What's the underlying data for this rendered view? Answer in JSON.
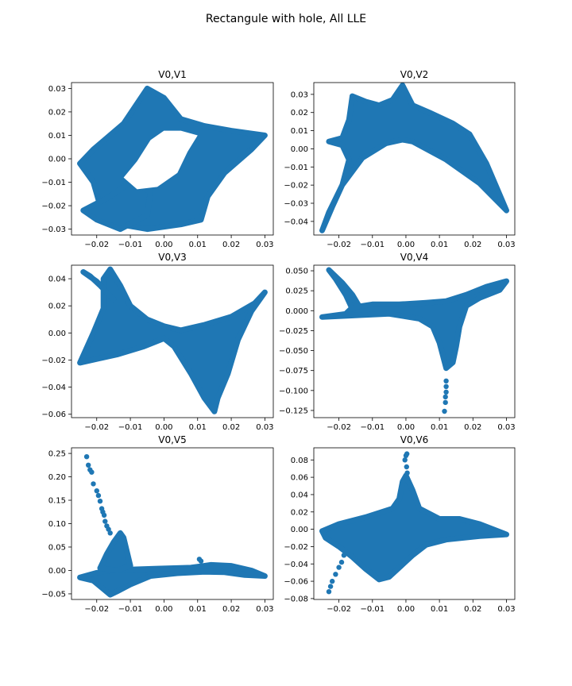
{
  "chart_data": {
    "title": "Rectangule with hole, All LLE",
    "type": "scatter",
    "color": "#1f77b4",
    "panels": [
      {
        "title": "V0,V1",
        "xlim": [
          -0.0275,
          0.0325
        ],
        "ylim": [
          -0.0325,
          0.0325
        ],
        "xticks": [
          -0.02,
          -0.01,
          0.0,
          0.01,
          0.02,
          0.03
        ],
        "xtick_labels": [
          "−0.02",
          "−0.01",
          "0.00",
          "0.01",
          "0.02",
          "0.03"
        ],
        "yticks": [
          -0.03,
          -0.02,
          -0.01,
          0.0,
          0.01,
          0.02,
          0.03
        ],
        "ytick_labels": [
          "−0.03",
          "−0.02",
          "−0.01",
          "0.00",
          "0.01",
          "0.02",
          "0.03"
        ],
        "shapes": [
          [
            [
              -0.025,
              -0.002
            ],
            [
              -0.021,
              0.004
            ],
            [
              -0.012,
              0.015
            ],
            [
              -0.005,
              0.03
            ],
            [
              0.0,
              0.026
            ],
            [
              0.005,
              0.017
            ],
            [
              0.012,
              0.014
            ],
            [
              0.02,
              0.012
            ],
            [
              0.03,
              0.01
            ],
            [
              0.026,
              0.004
            ],
            [
              0.018,
              -0.006
            ],
            [
              0.013,
              -0.016
            ],
            [
              0.011,
              -0.026
            ],
            [
              0.005,
              -0.028
            ],
            [
              -0.005,
              -0.03
            ],
            [
              -0.013,
              -0.028
            ],
            [
              -0.019,
              -0.02
            ],
            [
              -0.021,
              -0.01
            ]
          ],
          [
            [
              -0.024,
              -0.022
            ],
            [
              -0.016,
              -0.016
            ],
            [
              -0.01,
              -0.01
            ],
            [
              -0.004,
              -0.014
            ],
            [
              -0.005,
              -0.024
            ],
            [
              -0.013,
              -0.03
            ],
            [
              -0.02,
              -0.026
            ]
          ]
        ],
        "holes": [
          [
            [
              -0.012,
              -0.008
            ],
            [
              -0.008,
              -0.001
            ],
            [
              -0.004,
              0.008
            ],
            [
              0.0,
              0.012
            ],
            [
              0.005,
              0.012
            ],
            [
              0.01,
              0.01
            ],
            [
              0.007,
              0.003
            ],
            [
              0.004,
              -0.006
            ],
            [
              -0.002,
              -0.012
            ],
            [
              -0.008,
              -0.013
            ]
          ]
        ],
        "points": []
      },
      {
        "title": "V0,V2",
        "xlim": [
          -0.0275,
          0.0325
        ],
        "ylim": [
          -0.0475,
          0.0365
        ],
        "xticks": [
          -0.02,
          -0.01,
          0.0,
          0.01,
          0.02,
          0.03
        ],
        "xtick_labels": [
          "−0.02",
          "−0.01",
          "0.00",
          "0.01",
          "0.02",
          "0.03"
        ],
        "yticks": [
          -0.04,
          -0.03,
          -0.02,
          -0.01,
          0.0,
          0.01,
          0.02,
          0.03
        ],
        "ytick_labels": [
          "−0.04",
          "−0.03",
          "−0.02",
          "−0.01",
          "0.00",
          "0.01",
          "0.02",
          "0.03"
        ],
        "shapes": [
          [
            [
              -0.025,
              -0.045
            ],
            [
              -0.022,
              -0.032
            ],
            [
              -0.019,
              -0.02
            ],
            [
              -0.017,
              -0.006
            ],
            [
              -0.019,
              0.002
            ],
            [
              -0.023,
              0.004
            ],
            [
              -0.019,
              0.006
            ],
            [
              -0.017,
              0.016
            ],
            [
              -0.016,
              0.029
            ],
            [
              -0.012,
              0.026
            ],
            [
              -0.008,
              0.024
            ],
            [
              -0.004,
              0.027
            ],
            [
              -0.001,
              0.035
            ],
            [
              0.002,
              0.024
            ],
            [
              0.007,
              0.02
            ],
            [
              0.014,
              0.014
            ],
            [
              0.019,
              0.008
            ],
            [
              0.024,
              -0.008
            ],
            [
              0.03,
              -0.034
            ],
            [
              0.022,
              -0.019
            ],
            [
              0.012,
              -0.006
            ],
            [
              0.002,
              0.004
            ],
            [
              -0.001,
              0.005
            ],
            [
              -0.006,
              0.003
            ],
            [
              -0.013,
              -0.005
            ],
            [
              -0.019,
              -0.02
            ],
            [
              -0.023,
              -0.035
            ]
          ]
        ],
        "holes": [],
        "points": []
      },
      {
        "title": "V0,V3",
        "xlim": [
          -0.0275,
          0.0325
        ],
        "ylim": [
          -0.0625,
          0.05
        ],
        "xticks": [
          -0.02,
          -0.01,
          0.0,
          0.01,
          0.02,
          0.03
        ],
        "xtick_labels": [
          "−0.02",
          "−0.01",
          "0.00",
          "0.01",
          "0.02",
          "0.03"
        ],
        "yticks": [
          -0.06,
          -0.04,
          -0.02,
          0.0,
          0.02,
          0.04
        ],
        "ytick_labels": [
          "−0.06",
          "−0.04",
          "−0.02",
          "0.00",
          "0.02",
          "0.04"
        ],
        "shapes": [
          [
            [
              -0.025,
              -0.022
            ],
            [
              -0.021,
              0.0
            ],
            [
              -0.018,
              0.018
            ],
            [
              -0.018,
              0.04
            ],
            [
              -0.016,
              0.047
            ],
            [
              -0.013,
              0.035
            ],
            [
              -0.01,
              0.02
            ],
            [
              -0.005,
              0.01
            ],
            [
              0.0,
              0.005
            ],
            [
              0.005,
              0.002
            ],
            [
              0.012,
              0.006
            ],
            [
              0.02,
              0.012
            ],
            [
              0.027,
              0.022
            ],
            [
              0.03,
              0.03
            ],
            [
              0.026,
              0.016
            ],
            [
              0.022,
              -0.005
            ],
            [
              0.019,
              -0.03
            ],
            [
              0.016,
              -0.048
            ],
            [
              0.015,
              -0.058
            ],
            [
              0.012,
              -0.048
            ],
            [
              0.008,
              -0.03
            ],
            [
              0.003,
              -0.01
            ],
            [
              0.0,
              -0.004
            ],
            [
              -0.006,
              -0.01
            ],
            [
              -0.014,
              -0.016
            ]
          ],
          [
            [
              -0.024,
              0.045
            ],
            [
              -0.02,
              0.038
            ],
            [
              -0.017,
              0.03
            ],
            [
              -0.015,
              0.025
            ],
            [
              -0.019,
              0.035
            ],
            [
              -0.022,
              0.042
            ]
          ]
        ],
        "holes": [],
        "points": []
      },
      {
        "title": "V0,V4",
        "xlim": [
          -0.0275,
          0.0325
        ],
        "ylim": [
          -0.134,
          0.057
        ],
        "xticks": [
          -0.02,
          -0.01,
          0.0,
          0.01,
          0.02,
          0.03
        ],
        "xtick_labels": [
          "−0.02",
          "−0.01",
          "0.00",
          "0.01",
          "0.02",
          "0.03"
        ],
        "yticks": [
          -0.125,
          -0.1,
          -0.075,
          -0.05,
          -0.025,
          0.0,
          0.025,
          0.05
        ],
        "ytick_labels": [
          "−0.125",
          "−0.100",
          "−0.075",
          "−0.050",
          "−0.025",
          "0.000",
          "0.025",
          "0.050"
        ],
        "shapes": [
          [
            [
              -0.025,
              -0.008
            ],
            [
              -0.018,
              -0.004
            ],
            [
              -0.016,
              0.004
            ],
            [
              -0.01,
              0.008
            ],
            [
              -0.002,
              0.008
            ],
            [
              0.006,
              0.01
            ],
            [
              0.012,
              0.012
            ],
            [
              0.018,
              0.02
            ],
            [
              0.024,
              0.03
            ],
            [
              0.03,
              0.037
            ],
            [
              0.028,
              0.026
            ],
            [
              0.022,
              0.016
            ],
            [
              0.018,
              0.006
            ],
            [
              0.016,
              -0.02
            ],
            [
              0.015,
              -0.045
            ],
            [
              0.014,
              -0.065
            ],
            [
              0.012,
              -0.072
            ],
            [
              0.01,
              -0.04
            ],
            [
              0.008,
              -0.02
            ],
            [
              0.004,
              -0.01
            ],
            [
              -0.005,
              -0.004
            ],
            [
              -0.015,
              -0.006
            ]
          ],
          [
            [
              -0.023,
              0.051
            ],
            [
              -0.019,
              0.035
            ],
            [
              -0.016,
              0.02
            ],
            [
              -0.014,
              0.006
            ],
            [
              -0.016,
              0.002
            ],
            [
              -0.018,
              0.02
            ],
            [
              -0.021,
              0.04
            ]
          ]
        ],
        "holes": [],
        "points": [
          [
            0.012,
            -0.088
          ],
          [
            0.012,
            -0.095
          ],
          [
            0.012,
            -0.102
          ],
          [
            0.0118,
            -0.108
          ],
          [
            0.0118,
            -0.115
          ],
          [
            0.0115,
            -0.126
          ],
          [
            0.0125,
            -0.07
          ]
        ]
      },
      {
        "title": "V0,V5",
        "xlim": [
          -0.0275,
          0.0325
        ],
        "ylim": [
          -0.062,
          0.262
        ],
        "xticks": [
          -0.02,
          -0.01,
          0.0,
          0.01,
          0.02,
          0.03
        ],
        "xtick_labels": [
          "−0.02",
          "−0.01",
          "0.00",
          "0.01",
          "0.02",
          "0.03"
        ],
        "yticks": [
          -0.05,
          0.0,
          0.05,
          0.1,
          0.15,
          0.2,
          0.25
        ],
        "ytick_labels": [
          "−0.05",
          "0.00",
          "0.05",
          "0.10",
          "0.15",
          "0.20",
          "0.25"
        ],
        "shapes": [
          [
            [
              -0.025,
              -0.015
            ],
            [
              -0.02,
              -0.005
            ],
            [
              -0.016,
              0.0
            ],
            [
              -0.01,
              0.002
            ],
            [
              -0.002,
              0.004
            ],
            [
              0.008,
              0.006
            ],
            [
              0.014,
              0.012
            ],
            [
              0.02,
              0.01
            ],
            [
              0.026,
              0.0
            ],
            [
              0.03,
              -0.012
            ],
            [
              0.024,
              -0.01
            ],
            [
              0.018,
              -0.004
            ],
            [
              0.012,
              -0.003
            ],
            [
              0.004,
              -0.006
            ],
            [
              -0.004,
              -0.012
            ],
            [
              -0.01,
              -0.03
            ],
            [
              -0.014,
              -0.045
            ],
            [
              -0.016,
              -0.052
            ],
            [
              -0.018,
              -0.04
            ],
            [
              -0.021,
              -0.022
            ]
          ],
          [
            [
              -0.019,
              0.005
            ],
            [
              -0.017,
              0.035
            ],
            [
              -0.015,
              0.06
            ],
            [
              -0.013,
              0.08
            ],
            [
              -0.012,
              0.07
            ],
            [
              -0.011,
              0.04
            ],
            [
              -0.01,
              0.01
            ],
            [
              -0.014,
              0.0
            ]
          ]
        ],
        "holes": [],
        "points": [
          [
            -0.023,
            0.243
          ],
          [
            -0.0225,
            0.225
          ],
          [
            -0.022,
            0.215
          ],
          [
            -0.0215,
            0.21
          ],
          [
            -0.021,
            0.185
          ],
          [
            -0.02,
            0.17
          ],
          [
            -0.0195,
            0.16
          ],
          [
            -0.019,
            0.148
          ],
          [
            -0.0185,
            0.132
          ],
          [
            -0.0182,
            0.125
          ],
          [
            -0.0178,
            0.118
          ],
          [
            -0.0175,
            0.105
          ],
          [
            -0.017,
            0.095
          ],
          [
            -0.0165,
            0.088
          ],
          [
            -0.016,
            0.08
          ],
          [
            0.0105,
            0.024
          ],
          [
            0.011,
            0.02
          ]
        ]
      },
      {
        "title": "V0,V6",
        "xlim": [
          -0.0275,
          0.0325
        ],
        "ylim": [
          -0.081,
          0.094
        ],
        "xticks": [
          -0.02,
          -0.01,
          0.0,
          0.01,
          0.02,
          0.03
        ],
        "xtick_labels": [
          "−0.02",
          "−0.01",
          "0.00",
          "0.01",
          "0.02",
          "0.03"
        ],
        "yticks": [
          -0.08,
          -0.06,
          -0.04,
          -0.02,
          0.0,
          0.02,
          0.04,
          0.06,
          0.08
        ],
        "ytick_labels": [
          "−0.08",
          "−0.06",
          "−0.04",
          "−0.02",
          "0.00",
          "0.02",
          "0.04",
          "0.06",
          "0.08"
        ],
        "shapes": [
          [
            [
              -0.025,
              -0.002
            ],
            [
              -0.02,
              0.006
            ],
            [
              -0.012,
              0.014
            ],
            [
              -0.004,
              0.024
            ],
            [
              -0.002,
              0.035
            ],
            [
              -0.001,
              0.055
            ],
            [
              0.0,
              0.062
            ],
            [
              0.002,
              0.045
            ],
            [
              0.004,
              0.024
            ],
            [
              0.01,
              0.012
            ],
            [
              0.016,
              0.012
            ],
            [
              0.022,
              0.006
            ],
            [
              0.03,
              -0.006
            ],
            [
              0.022,
              -0.008
            ],
            [
              0.012,
              -0.012
            ],
            [
              0.006,
              -0.018
            ],
            [
              0.002,
              -0.03
            ],
            [
              -0.005,
              -0.055
            ],
            [
              -0.008,
              -0.058
            ],
            [
              -0.012,
              -0.046
            ],
            [
              -0.016,
              -0.032
            ],
            [
              -0.02,
              -0.02
            ],
            [
              -0.024,
              -0.01
            ]
          ]
        ],
        "holes": [],
        "points": [
          [
            -0.023,
            -0.072
          ],
          [
            -0.0225,
            -0.066
          ],
          [
            -0.022,
            -0.06
          ],
          [
            -0.021,
            -0.052
          ],
          [
            -0.02,
            -0.044
          ],
          [
            -0.0192,
            -0.038
          ],
          [
            -0.0185,
            -0.03
          ],
          [
            0.0,
            0.085
          ],
          [
            0.0003,
            0.087
          ],
          [
            -0.0003,
            0.08
          ],
          [
            0.0002,
            0.072
          ],
          [
            0.0004,
            0.065
          ]
        ]
      }
    ]
  }
}
